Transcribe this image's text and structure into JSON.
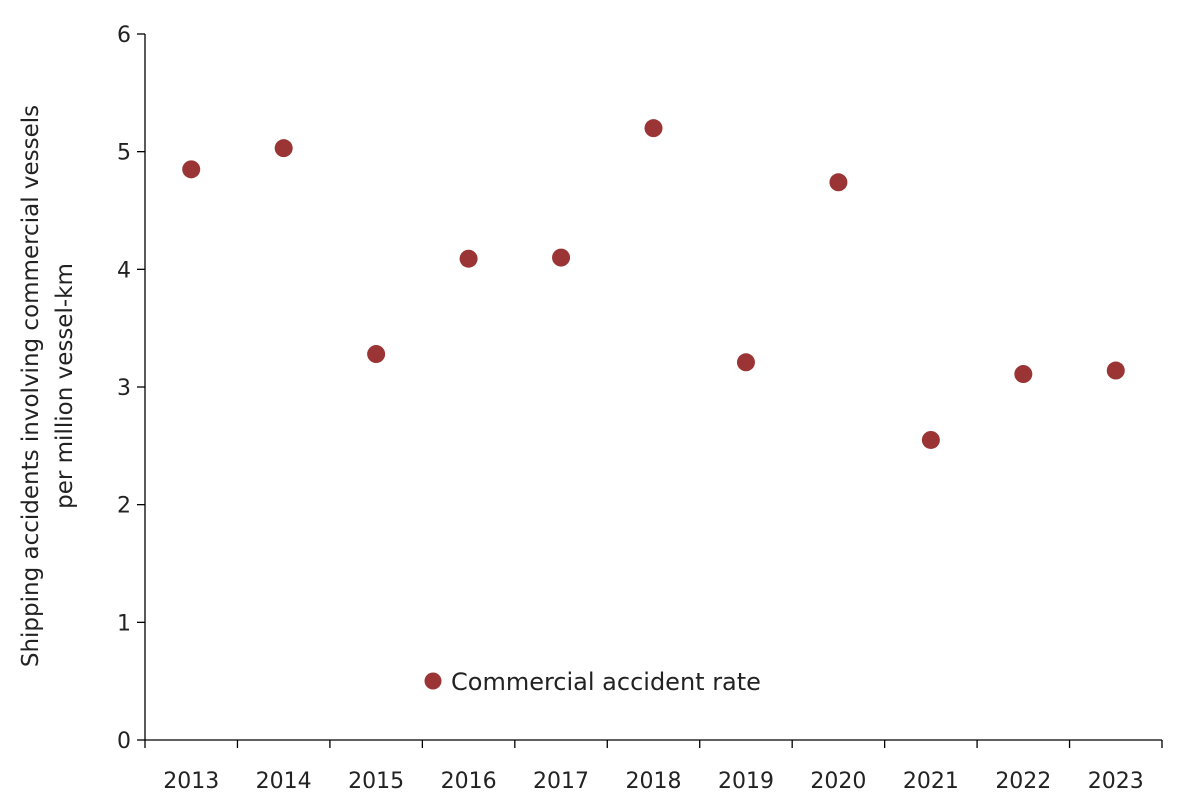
{
  "chart_data": {
    "type": "scatter",
    "title": "",
    "xlabel": "",
    "ylabel_lines": [
      "Shipping accidents involving commercial vessels",
      "per million vessel-km"
    ],
    "categories": [
      "2013",
      "2014",
      "2015",
      "2016",
      "2017",
      "2018",
      "2019",
      "2020",
      "2021",
      "2022",
      "2023"
    ],
    "series": [
      {
        "name": "Commercial accident rate",
        "color": "#9b3434",
        "values": [
          4.85,
          5.03,
          3.28,
          4.09,
          4.1,
          5.2,
          3.21,
          4.74,
          2.55,
          3.11,
          3.14
        ]
      }
    ],
    "ylim": [
      0,
      6
    ],
    "yticks": [
      "0",
      "1",
      "2",
      "3",
      "4",
      "5",
      "6"
    ],
    "grid": false,
    "legend_position": "bottom-left inside plot"
  }
}
